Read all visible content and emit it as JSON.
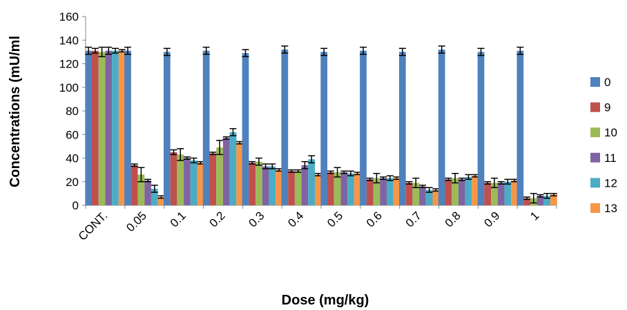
{
  "chart_data": {
    "type": "bar",
    "xlabel": "Dose (mg/kg)",
    "ylabel": "Concentrations (mU/ml",
    "ylim": [
      0,
      160
    ],
    "yticks": [
      0,
      20,
      40,
      60,
      80,
      100,
      120,
      140,
      160
    ],
    "categories": [
      "CONT.",
      "0.05",
      "0.1",
      "0.2",
      "0.3",
      "0.4",
      "0.5",
      "0.6",
      "0.7",
      "0.8",
      "0.9",
      "1"
    ],
    "legend_position": "right",
    "grid": false,
    "series": [
      {
        "name": "0",
        "color": "#4F81BD",
        "values": [
          131,
          131,
          130,
          131,
          129,
          132,
          130,
          131,
          130,
          132,
          130,
          131
        ],
        "errors": [
          3,
          3,
          3,
          3,
          3,
          3,
          3,
          3,
          3,
          3,
          3,
          3
        ]
      },
      {
        "name": "9",
        "color": "#C0504D",
        "values": [
          131,
          34,
          45,
          44,
          36,
          29,
          28,
          22,
          19,
          22,
          19,
          6
        ],
        "errors": [
          2,
          1,
          2,
          1,
          1,
          1,
          1,
          1,
          1,
          1,
          1,
          1
        ]
      },
      {
        "name": "10",
        "color": "#9BBB59",
        "values": [
          130,
          26,
          43,
          49,
          37,
          29,
          28,
          23,
          19,
          23,
          19,
          6
        ],
        "errors": [
          4,
          6,
          5,
          6,
          3,
          1,
          4,
          4,
          4,
          4,
          4,
          4
        ]
      },
      {
        "name": "11",
        "color": "#8064A2",
        "values": [
          131,
          21,
          40,
          57,
          33,
          34,
          28,
          23,
          16,
          22,
          19,
          8
        ],
        "errors": [
          3,
          1,
          1,
          1,
          2,
          3,
          1,
          1,
          1,
          1,
          1,
          1
        ]
      },
      {
        "name": "12",
        "color": "#4BACC6",
        "values": [
          131,
          14,
          38,
          62,
          33,
          39,
          27,
          23,
          13,
          24,
          20,
          8
        ],
        "errors": [
          2,
          3,
          2,
          3,
          2,
          3,
          2,
          2,
          2,
          2,
          2,
          2
        ]
      },
      {
        "name": "13",
        "color": "#F79646",
        "values": [
          131,
          7,
          36,
          53,
          30,
          26,
          27,
          23,
          13,
          25,
          21,
          9
        ],
        "errors": [
          1,
          1,
          1,
          1,
          1,
          1,
          1,
          1,
          1,
          1,
          1,
          1
        ]
      }
    ]
  }
}
